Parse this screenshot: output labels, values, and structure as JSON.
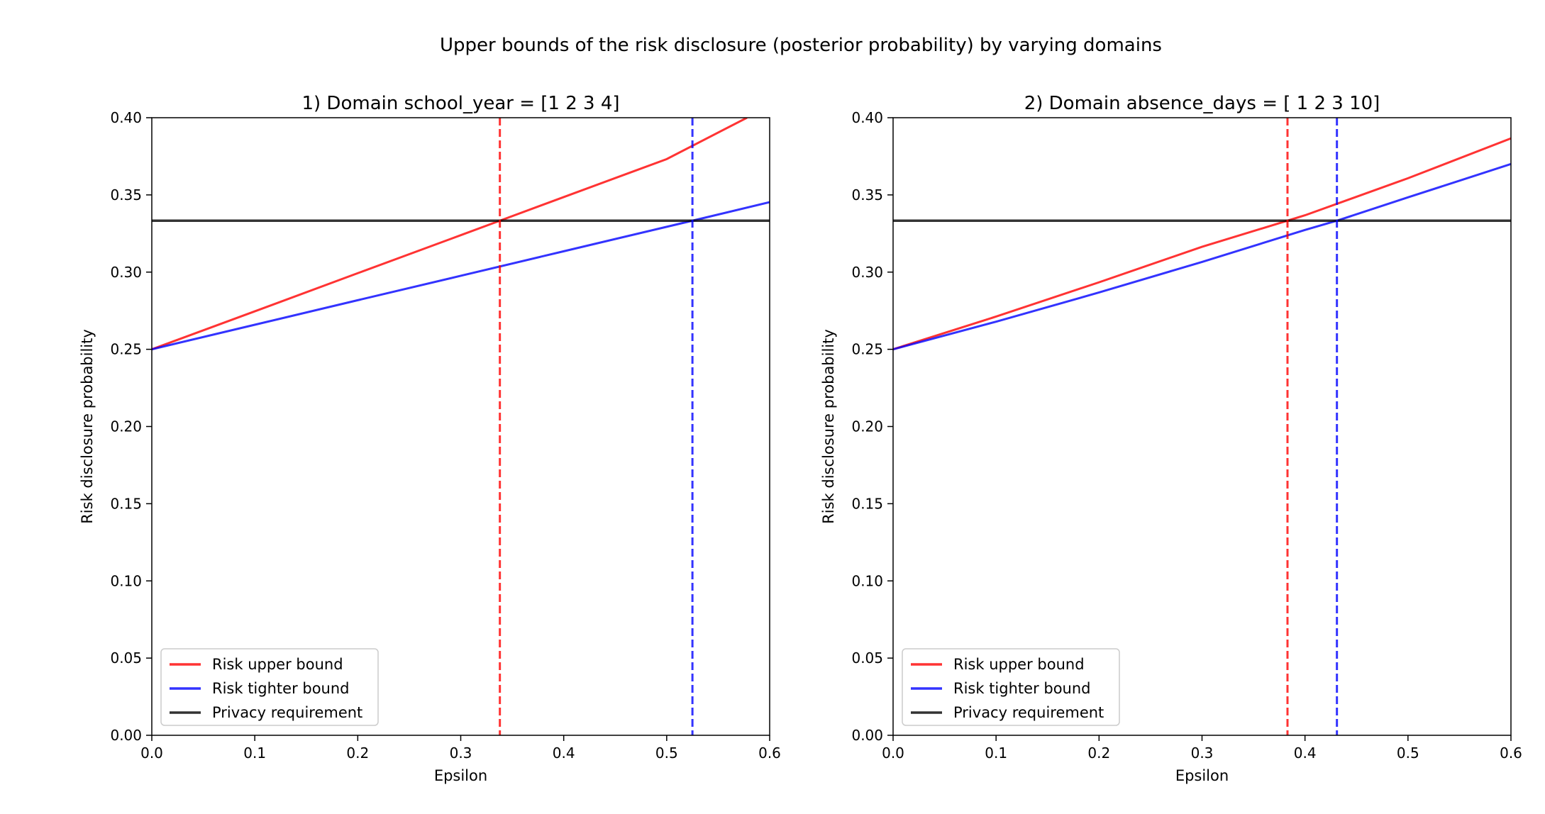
{
  "figure": {
    "suptitle": "Upper bounds of the risk disclosure (posterior probability) by varying domains"
  },
  "chart_data": [
    {
      "type": "line",
      "title": "1) Domain school_year = [1 2 3 4]",
      "xlabel": "Epsilon",
      "ylabel": "Risk disclosure probability",
      "xlim": [
        0.0,
        0.6
      ],
      "ylim": [
        0.0,
        0.4
      ],
      "xticks": [
        "0.0",
        "0.1",
        "0.2",
        "0.3",
        "0.4",
        "0.5",
        "0.6"
      ],
      "yticks": [
        "0.00",
        "0.05",
        "0.10",
        "0.15",
        "0.20",
        "0.25",
        "0.30",
        "0.35",
        "0.40"
      ],
      "grid": false,
      "legend_location": "lower left",
      "series": [
        {
          "name": "Risk upper bound",
          "color": "#ff0000",
          "style": "solid",
          "x": [
            0.0,
            0.1,
            0.2,
            0.3,
            0.338,
            0.4,
            0.5,
            0.578
          ],
          "values": [
            0.25,
            0.2746,
            0.2993,
            0.3239,
            0.3333,
            0.3486,
            0.3732,
            0.4
          ]
        },
        {
          "name": "Risk tighter bound",
          "color": "#0000ff",
          "style": "solid",
          "x": [
            0.0,
            0.1,
            0.2,
            0.3,
            0.4,
            0.525,
            0.6
          ],
          "values": [
            0.25,
            0.2659,
            0.2818,
            0.2976,
            0.3135,
            0.3333,
            0.3453
          ]
        },
        {
          "name": "Privacy requirement",
          "color": "#000000",
          "style": "solid",
          "x": [
            0.0,
            0.6
          ],
          "values": [
            0.3333,
            0.3333
          ]
        }
      ],
      "vlines": [
        {
          "x": 0.338,
          "color": "#ff0000",
          "style": "dashed"
        },
        {
          "x": 0.525,
          "color": "#0000ff",
          "style": "dashed"
        }
      ]
    },
    {
      "type": "line",
      "title": "2) Domain absence_days = [ 1  2  3 10]",
      "xlabel": "Epsilon",
      "ylabel": "Risk disclosure probability",
      "xlim": [
        0.0,
        0.6
      ],
      "ylim": [
        0.0,
        0.4
      ],
      "xticks": [
        "0.0",
        "0.1",
        "0.2",
        "0.3",
        "0.4",
        "0.5",
        "0.6"
      ],
      "yticks": [
        "0.00",
        "0.05",
        "0.10",
        "0.15",
        "0.20",
        "0.25",
        "0.30",
        "0.35",
        "0.40"
      ],
      "grid": false,
      "legend_location": "lower left",
      "series": [
        {
          "name": "Risk upper bound",
          "color": "#ff0000",
          "style": "solid",
          "x": [
            0.0,
            0.1,
            0.2,
            0.3,
            0.383,
            0.4,
            0.5,
            0.6
          ],
          "values": [
            0.25,
            0.2712,
            0.2934,
            0.3164,
            0.3333,
            0.3368,
            0.3608,
            0.3866
          ]
        },
        {
          "name": "Risk tighter bound",
          "color": "#0000ff",
          "style": "solid",
          "x": [
            0.0,
            0.1,
            0.2,
            0.3,
            0.4,
            0.431,
            0.5,
            0.6
          ],
          "values": [
            0.25,
            0.2679,
            0.2868,
            0.3066,
            0.3273,
            0.3333,
            0.3484,
            0.37
          ]
        },
        {
          "name": "Privacy requirement",
          "color": "#000000",
          "style": "solid",
          "x": [
            0.0,
            0.6
          ],
          "values": [
            0.3333,
            0.3333
          ]
        }
      ],
      "vlines": [
        {
          "x": 0.383,
          "color": "#ff0000",
          "style": "dashed"
        },
        {
          "x": 0.431,
          "color": "#0000ff",
          "style": "dashed"
        }
      ]
    }
  ]
}
